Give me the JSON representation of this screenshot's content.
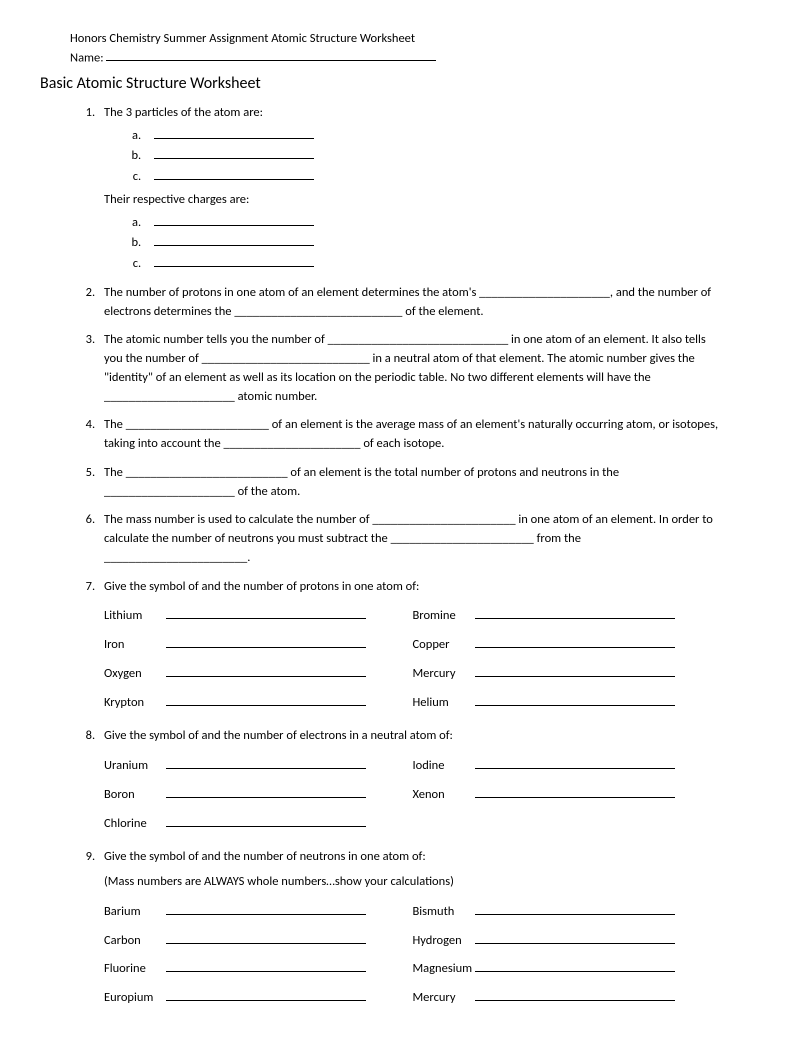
{
  "header": {
    "course": "Honors Chemistry Summer Assignment Atomic Structure Worksheet",
    "name_label": "Name:"
  },
  "title": "Basic Atomic Structure Worksheet",
  "q1": {
    "prompt": "The 3 particles of the atom are:",
    "followup": "Their respective charges are:"
  },
  "q2": "The number of protons in one atom of an element determines the atom's _____________________, and the number of electrons determines the ___________________________ of the element.",
  "q3": "The atomic number tells you the number of _____________________________ in one atom of an element.  It also tells you the number of ___________________________ in a neutral atom of that element.  The atomic number gives the \"identity\" of an element as well as its location on the periodic table.  No two different elements will have the _____________________ atomic number.",
  "q4": "The _______________________ of an element is the average mass of an element's naturally occurring atom, or isotopes, taking into account the ______________________ of each isotope.",
  "q5": "The __________________________ of an element is the total number of protons and neutrons in the _____________________ of the atom.",
  "q6": "The mass number is used to calculate the number of _______________________ in one atom of an element.  In order to calculate the number of neutrons you must subtract the _______________________ from the _______________________.",
  "q7": {
    "prompt": "Give the symbol of and the number of protons in one atom of:",
    "elements": [
      "Lithium",
      "Bromine",
      "Iron",
      "Copper",
      "Oxygen",
      "Mercury",
      "Krypton",
      "Helium"
    ]
  },
  "q8": {
    "prompt": "Give the symbol of and the number of electrons in a neutral atom of:",
    "elements": [
      "Uranium",
      "Iodine",
      "Boron",
      "Xenon",
      "Chlorine",
      ""
    ]
  },
  "q9": {
    "prompt": "Give the symbol of and the number of neutrons in one atom of:",
    "note": "(Mass numbers are ALWAYS whole numbers…show your calculations)",
    "elements": [
      "Barium",
      "Bismuth",
      "Carbon",
      "Hydrogen",
      "Fluorine",
      "Magnesium",
      "Europium",
      "Mercury"
    ]
  }
}
